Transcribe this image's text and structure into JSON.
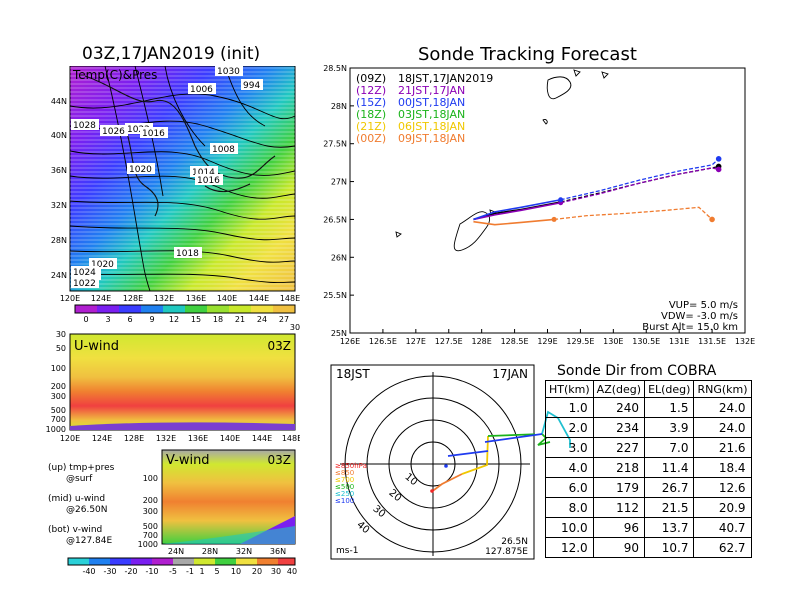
{
  "left_panel": {
    "title": "03Z,17JAN2019 (init)",
    "map_label": "Temp(C)&Pres",
    "lat_ticks": [
      "44N",
      "40N",
      "36N",
      "32N",
      "28N",
      "24N"
    ],
    "lon_ticks": [
      "120E",
      "124E",
      "128E",
      "132E",
      "136E",
      "140E",
      "144E",
      "148E"
    ],
    "isobar_labels": [
      "1030",
      "1006",
      "994",
      "1028",
      "1026",
      "1022",
      "1024",
      "1016",
      "1008",
      "1020",
      "1014",
      "1016",
      "1020",
      "1018",
      "1024",
      "1022"
    ],
    "colorbar_ticks": [
      "0",
      "3",
      "6",
      "9",
      "12",
      "15",
      "18",
      "21",
      "24",
      "27",
      "30"
    ],
    "uwind_label": "U-wind",
    "uwind_time": "03Z",
    "pres_ticks": [
      "30",
      "50",
      "100",
      "200",
      "300",
      "500",
      "700",
      "1000"
    ],
    "vwind_label": "V-wind",
    "vwind_time": "03Z",
    "vwind_lat_ticks": [
      "24N",
      "28N",
      "32N",
      "36N"
    ],
    "legend_notes": [
      {
        "a": "(up) tmp+pres",
        "b": "@surf"
      },
      {
        "a": "(mid) u-wind",
        "b": "@26.50N"
      },
      {
        "a": "(bot) v-wind",
        "b": "@127.84E"
      }
    ],
    "wind_colorbar_ticks": [
      "-40",
      "-30",
      "-20",
      "-10",
      "-5",
      "-1",
      "1",
      "5",
      "10",
      "20",
      "30",
      "40"
    ]
  },
  "tracking": {
    "title": "Sonde Tracking Forecast",
    "lat_ticks": [
      "28.5N",
      "28N",
      "27.5N",
      "27N",
      "26.5N",
      "26N",
      "25.5N",
      "25N"
    ],
    "lon_ticks": [
      "126E",
      "126.5E",
      "127E",
      "127.5E",
      "128E",
      "128.5E",
      "129E",
      "129.5E",
      "130E",
      "130.5E",
      "131E",
      "131.5E",
      "132E"
    ],
    "legend": [
      {
        "run": "(09Z)",
        "label": "18JST,17JAN2019",
        "color": "#000000"
      },
      {
        "run": "(12Z)",
        "label": "21JST,17JAN",
        "color": "#8b00b5"
      },
      {
        "run": "(15Z)",
        "label": "00JST,18JAN",
        "color": "#1f3bf0"
      },
      {
        "run": "(18Z)",
        "label": "03JST,18JAN",
        "color": "#1bb31b"
      },
      {
        "run": "(21Z)",
        "label": "06JST,18JAN",
        "color": "#f0c800"
      },
      {
        "run": "(00Z)",
        "label": "09JST,18JAN",
        "color": "#f07c30"
      }
    ],
    "params": [
      "VUP= 5.0 m/s",
      "VDW= -3.0 m/s",
      "Burst Alt= 15.0 km"
    ]
  },
  "polar": {
    "time_left": "18JST",
    "time_right": "17JAN",
    "ring_labels": [
      "10",
      "20",
      "30",
      "40"
    ],
    "pressure_legend": [
      {
        "label": "≥850hPa",
        "color": "#f02828"
      },
      {
        "label": "≤850",
        "color": "#f07c30"
      },
      {
        "label": "≤700",
        "color": "#f0c800"
      },
      {
        "label": "≤500",
        "color": "#1bb31b"
      },
      {
        "label": "≤250",
        "color": "#20c0d0"
      },
      {
        "label": "≤100",
        "color": "#1f3bf0"
      }
    ],
    "unit": "ms-1",
    "loc_lat": "26.5N",
    "loc_lon": "127.875E"
  },
  "sonde_dir": {
    "title": "Sonde Dir from COBRA",
    "headers": [
      "HT(km)",
      "AZ(deg)",
      "EL(deg)",
      "RNG(km)"
    ],
    "rows": [
      [
        "1.0",
        "240",
        "1.5",
        "24.0"
      ],
      [
        "2.0",
        "234",
        "3.9",
        "24.0"
      ],
      [
        "3.0",
        "227",
        "7.0",
        "21.6"
      ],
      [
        "4.0",
        "218",
        "11.4",
        "18.4"
      ],
      [
        "6.0",
        "179",
        "26.7",
        "12.6"
      ],
      [
        "8.0",
        "112",
        "21.5",
        "20.9"
      ],
      [
        "10.0",
        "96",
        "13.7",
        "40.7"
      ],
      [
        "12.0",
        "90",
        "10.7",
        "62.7"
      ]
    ]
  },
  "chart_data": [
    {
      "type": "line",
      "title": "Sonde Tracking Forecast",
      "xlim": [
        126,
        132
      ],
      "ylim": [
        25,
        28.5
      ],
      "series": [
        {
          "name": "18JST,17JAN2019",
          "x": [
            127.875,
            128.2,
            128.6,
            129.2,
            129.8,
            130.4,
            131.0,
            131.5,
            131.6
          ],
          "y": [
            26.5,
            26.58,
            26.63,
            26.73,
            26.85,
            26.98,
            27.1,
            27.18,
            27.2
          ]
        },
        {
          "name": "21JST,17JAN",
          "x": [
            127.875,
            128.2,
            128.6,
            129.2,
            129.8,
            130.4,
            131.0,
            131.5,
            131.6
          ],
          "y": [
            26.5,
            26.56,
            26.62,
            26.72,
            26.84,
            26.98,
            27.1,
            27.18,
            27.16
          ]
        },
        {
          "name": "00JST,18JAN",
          "x": [
            127.875,
            128.2,
            128.6,
            129.2,
            129.8,
            130.4,
            131.0,
            131.5,
            131.6
          ],
          "y": [
            26.5,
            26.6,
            26.66,
            26.76,
            26.88,
            27.02,
            27.14,
            27.22,
            27.3
          ]
        },
        {
          "name": "09JST,18JAN",
          "x": [
            127.875,
            128.2,
            128.6,
            129.1,
            129.6,
            130.2,
            130.8,
            131.3,
            131.5
          ],
          "y": [
            26.47,
            26.43,
            26.46,
            26.5,
            26.55,
            26.58,
            26.62,
            26.66,
            26.5
          ]
        }
      ]
    },
    {
      "type": "table",
      "title": "Sonde Dir from COBRA",
      "columns": [
        "HT(km)",
        "AZ(deg)",
        "EL(deg)",
        "RNG(km)"
      ],
      "rows": [
        [
          1.0,
          240,
          1.5,
          24.0
        ],
        [
          2.0,
          234,
          3.9,
          24.0
        ],
        [
          3.0,
          227,
          7.0,
          21.6
        ],
        [
          4.0,
          218,
          11.4,
          18.4
        ],
        [
          6.0,
          179,
          26.7,
          12.6
        ],
        [
          8.0,
          112,
          21.5,
          20.9
        ],
        [
          10.0,
          96,
          13.7,
          40.7
        ],
        [
          12.0,
          90,
          10.7,
          62.7
        ]
      ]
    }
  ]
}
